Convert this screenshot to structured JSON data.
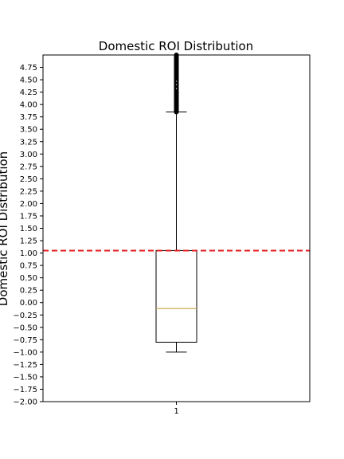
{
  "chart_data": {
    "type": "box",
    "title": "Domestic ROI Distribution",
    "xlabel": "",
    "ylabel": "Domestic ROI Distribution",
    "ylim": [
      -2.0,
      5.0
    ],
    "yticks": [
      "-2.00",
      "-1.75",
      "-1.50",
      "-1.25",
      "-1.00",
      "-0.75",
      "-0.50",
      "-0.25",
      "0.00",
      "0.25",
      "0.50",
      "0.75",
      "1.00",
      "1.25",
      "1.50",
      "1.75",
      "2.00",
      "2.25",
      "2.50",
      "2.75",
      "3.00",
      "3.25",
      "3.50",
      "3.75",
      "4.00",
      "4.25",
      "4.50",
      "4.75"
    ],
    "categories": [
      "1"
    ],
    "boxes": [
      {
        "category": "1",
        "whisker_low": -1.0,
        "q1": -0.8,
        "median": -0.12,
        "q3": 1.05,
        "whisker_high": 3.85,
        "outliers_range": [
          3.85,
          5.0
        ]
      }
    ],
    "reference_line": {
      "y": 1.05,
      "style": "dashed",
      "color": "#e31a1c"
    },
    "colors": {
      "median": "#c8a33c",
      "box": "#000000",
      "outliers": "#000000"
    },
    "grid": false
  }
}
